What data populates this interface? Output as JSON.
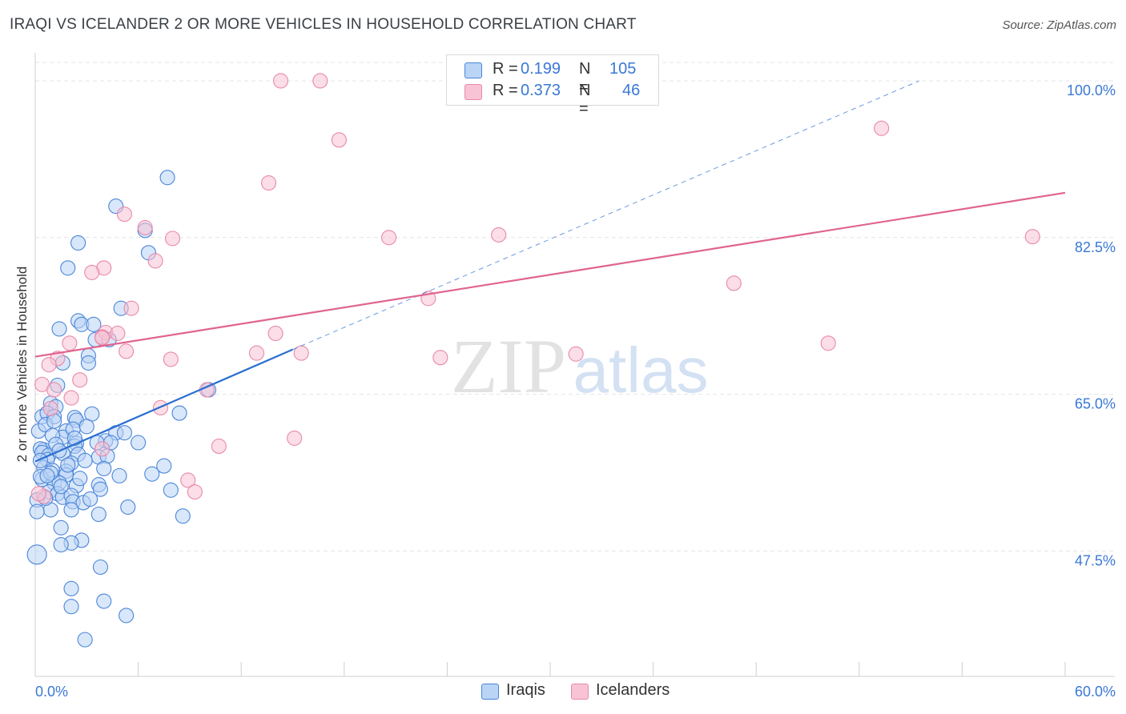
{
  "title": "IRAQI VS ICELANDER 2 OR MORE VEHICLES IN HOUSEHOLD CORRELATION CHART",
  "source": "Source: ZipAtlas.com",
  "watermark": {
    "zip": "ZIP",
    "atlas": "atlas"
  },
  "legend": {
    "r_label": "R =",
    "n_label": "N =",
    "iraqis": {
      "r": "0.199",
      "n": "105"
    },
    "icelanders": {
      "r": "0.373",
      "n": "46"
    }
  },
  "series_labels": {
    "iraqis": "Iraqis",
    "icelanders": "Icelanders"
  },
  "colors": {
    "iraqis_fill": "#b9d4f5",
    "iraqis_stroke": "#4b86d8",
    "iraqis_line": "#2a6fd1",
    "icelanders_fill": "#f8c3d4",
    "icelanders_stroke": "#e889a9",
    "icelanders_line": "#e0648f",
    "tick_label": "#3a78d6",
    "grid": "#e4e4e4"
  },
  "chart_data": {
    "type": "scatter",
    "title": "IRAQI VS ICELANDER 2 OR MORE VEHICLES IN HOUSEHOLD CORRELATION CHART",
    "xlabel": "",
    "ylabel": "2 or more Vehicles in Household",
    "xlim": [
      0,
      60
    ],
    "ylim": [
      33.5,
      102.5
    ],
    "x_tick_labels": [
      "0.0%",
      "60.0%"
    ],
    "y_ticks": [
      47.5,
      65.0,
      82.5,
      100.0
    ],
    "y_tick_labels": [
      "47.5%",
      "65.0%",
      "82.5%",
      "100.0%"
    ],
    "grid": true,
    "series": [
      {
        "name": "Iraqis",
        "r": 0.199,
        "n": 105,
        "trend": {
          "x": [
            0,
            15
          ],
          "y": [
            57.5,
            70.0
          ],
          "dashed_to": [
            51.5,
            100.0
          ]
        },
        "points": [
          [
            7.7,
            89.2
          ],
          [
            4.7,
            86.0
          ],
          [
            6.4,
            83.3
          ],
          [
            2.5,
            81.9
          ],
          [
            6.6,
            80.8
          ],
          [
            1.9,
            79.1
          ],
          [
            5.0,
            74.6
          ],
          [
            2.5,
            73.2
          ],
          [
            2.7,
            72.8
          ],
          [
            3.4,
            72.8
          ],
          [
            1.4,
            72.3
          ],
          [
            3.5,
            71.1
          ],
          [
            4.3,
            71.1
          ],
          [
            1.6,
            68.5
          ],
          [
            3.1,
            69.3
          ],
          [
            3.1,
            68.5
          ],
          [
            1.3,
            66.0
          ],
          [
            10.1,
            65.5
          ],
          [
            0.9,
            64.0
          ],
          [
            1.2,
            63.6
          ],
          [
            2.3,
            62.4
          ],
          [
            0.4,
            62.5
          ],
          [
            0.7,
            62.9
          ],
          [
            1.1,
            62.5
          ],
          [
            8.4,
            62.9
          ],
          [
            3.3,
            62.8
          ],
          [
            2.4,
            62.1
          ],
          [
            1.8,
            60.9
          ],
          [
            4.7,
            60.7
          ],
          [
            5.2,
            60.7
          ],
          [
            1.6,
            60.2
          ],
          [
            4.1,
            59.8
          ],
          [
            3.6,
            59.6
          ],
          [
            2.4,
            59.5
          ],
          [
            2.3,
            59.2
          ],
          [
            6.0,
            59.6
          ],
          [
            4.4,
            59.6
          ],
          [
            0.5,
            58.8
          ],
          [
            0.3,
            58.9
          ],
          [
            0.4,
            58.5
          ],
          [
            0.8,
            58.2
          ],
          [
            1.6,
            58.4
          ],
          [
            2.5,
            58.3
          ],
          [
            3.7,
            58.0
          ],
          [
            0.7,
            57.7
          ],
          [
            2.1,
            57.3
          ],
          [
            4.2,
            58.1
          ],
          [
            7.5,
            57.0
          ],
          [
            0.5,
            56.8
          ],
          [
            1.0,
            56.5
          ],
          [
            1.8,
            56.4
          ],
          [
            1.8,
            56.0
          ],
          [
            6.8,
            56.1
          ],
          [
            4.9,
            55.9
          ],
          [
            1.1,
            55.1
          ],
          [
            0.4,
            55.5
          ],
          [
            0.3,
            55.8
          ],
          [
            1.4,
            55.1
          ],
          [
            3.7,
            54.9
          ],
          [
            2.4,
            54.8
          ],
          [
            0.8,
            54.1
          ],
          [
            7.9,
            54.3
          ],
          [
            1.3,
            53.9
          ],
          [
            1.6,
            53.5
          ],
          [
            0.1,
            53.2
          ],
          [
            2.1,
            53.7
          ],
          [
            3.8,
            54.4
          ],
          [
            2.2,
            53.0
          ],
          [
            2.8,
            52.9
          ],
          [
            5.4,
            52.4
          ],
          [
            0.9,
            52.1
          ],
          [
            2.1,
            52.1
          ],
          [
            3.7,
            51.6
          ],
          [
            8.6,
            51.4
          ],
          [
            0.1,
            51.9
          ],
          [
            1.5,
            50.1
          ],
          [
            2.7,
            48.7
          ],
          [
            2.1,
            48.4
          ],
          [
            1.5,
            48.2
          ],
          [
            0.1,
            47.1
          ],
          [
            3.8,
            45.7
          ],
          [
            2.1,
            43.3
          ],
          [
            4.0,
            41.9
          ],
          [
            2.1,
            41.3
          ],
          [
            5.3,
            40.3
          ],
          [
            2.9,
            37.6
          ],
          [
            0.2,
            60.9
          ],
          [
            0.6,
            61.6
          ],
          [
            1.0,
            60.4
          ],
          [
            2.2,
            61.1
          ],
          [
            1.2,
            59.4
          ],
          [
            3.0,
            61.4
          ],
          [
            0.3,
            57.6
          ],
          [
            1.9,
            57.1
          ],
          [
            0.9,
            56.2
          ],
          [
            2.6,
            55.6
          ],
          [
            1.5,
            54.7
          ],
          [
            0.6,
            53.4
          ],
          [
            2.9,
            57.6
          ],
          [
            4.0,
            56.7
          ],
          [
            1.4,
            58.7
          ],
          [
            0.7,
            55.9
          ],
          [
            3.2,
            53.3
          ],
          [
            1.1,
            62.0
          ],
          [
            2.3,
            60.1
          ]
        ]
      },
      {
        "name": "Icelanders",
        "r": 0.373,
        "n": 46,
        "trend": {
          "x": [
            0,
            60
          ],
          "y": [
            69.2,
            87.5
          ]
        },
        "points": [
          [
            14.3,
            100.0
          ],
          [
            16.6,
            100.0
          ],
          [
            17.7,
            93.4
          ],
          [
            49.3,
            94.7
          ],
          [
            13.6,
            88.6
          ],
          [
            5.2,
            85.1
          ],
          [
            6.4,
            83.6
          ],
          [
            8.0,
            82.4
          ],
          [
            20.6,
            82.5
          ],
          [
            27.0,
            82.8
          ],
          [
            58.1,
            82.6
          ],
          [
            7.0,
            79.9
          ],
          [
            4.0,
            79.1
          ],
          [
            3.3,
            78.6
          ],
          [
            40.7,
            77.4
          ],
          [
            22.9,
            75.7
          ],
          [
            5.6,
            74.6
          ],
          [
            4.1,
            71.9
          ],
          [
            4.8,
            71.8
          ],
          [
            14.0,
            71.8
          ],
          [
            3.9,
            71.4
          ],
          [
            3.9,
            71.3
          ],
          [
            2.0,
            70.7
          ],
          [
            46.2,
            70.7
          ],
          [
            5.3,
            69.8
          ],
          [
            12.9,
            69.6
          ],
          [
            15.5,
            69.6
          ],
          [
            31.5,
            69.5
          ],
          [
            23.6,
            69.1
          ],
          [
            1.3,
            69.0
          ],
          [
            7.9,
            68.9
          ],
          [
            0.8,
            68.3
          ],
          [
            2.6,
            66.6
          ],
          [
            0.4,
            66.1
          ],
          [
            1.1,
            65.5
          ],
          [
            10.0,
            65.5
          ],
          [
            2.1,
            64.6
          ],
          [
            7.3,
            63.5
          ],
          [
            0.9,
            63.4
          ],
          [
            15.1,
            60.1
          ],
          [
            10.7,
            59.2
          ],
          [
            3.9,
            58.9
          ],
          [
            8.9,
            55.4
          ],
          [
            9.3,
            54.1
          ],
          [
            0.5,
            53.6
          ],
          [
            0.2,
            53.9
          ]
        ]
      }
    ]
  }
}
